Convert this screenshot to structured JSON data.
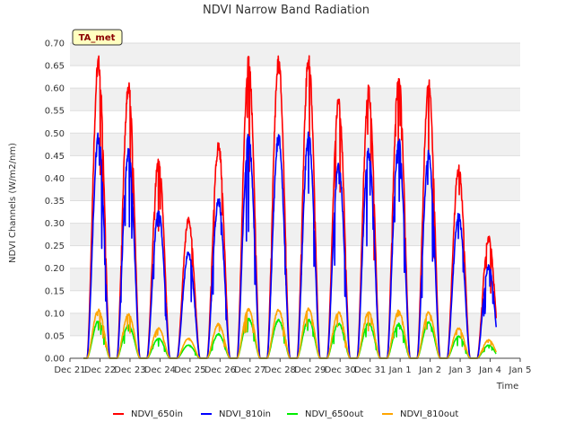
{
  "chart_data": {
    "type": "line",
    "title": "NDVI Narrow Band Radiation",
    "xlabel": "Time",
    "ylabel": "NDVI Channels (W/m2/nm)",
    "ylim": [
      0,
      0.7
    ],
    "yticks": [
      "0.00",
      "0.05",
      "0.10",
      "0.15",
      "0.20",
      "0.25",
      "0.30",
      "0.35",
      "0.40",
      "0.45",
      "0.50",
      "0.55",
      "0.60",
      "0.65",
      "0.70"
    ],
    "xticks": [
      "Dec 21",
      "Dec 22",
      "Dec 23",
      "Dec 24",
      "Dec 25",
      "Dec 26",
      "Dec 27",
      "Dec 28",
      "Dec 29",
      "Dec 30",
      "Dec 31",
      "Jan 1",
      "Jan 2",
      "Jan 3",
      "Jan 4",
      "Jan 5"
    ],
    "xlim_days": [
      0,
      15
    ],
    "annotation": "TA_met",
    "legend_position": "bottom",
    "series": [
      {
        "name": "NDVI_650in",
        "color": "#ff0000",
        "day_peaks": [
          0.675,
          0.62,
          0.45,
          0.315,
          0.485,
          0.678,
          0.675,
          0.685,
          0.587,
          0.61,
          0.64,
          0.625,
          0.432,
          0.275
        ]
      },
      {
        "name": "NDVI_810in",
        "color": "#0000ff",
        "day_peaks": [
          0.505,
          0.47,
          0.335,
          0.24,
          0.36,
          0.505,
          0.503,
          0.51,
          0.44,
          0.47,
          0.495,
          0.465,
          0.325,
          0.21
        ]
      },
      {
        "name": "NDVI_650out",
        "color": "#00ee00",
        "day_peaks": [
          0.085,
          0.075,
          0.045,
          0.03,
          0.055,
          0.09,
          0.087,
          0.088,
          0.08,
          0.08,
          0.078,
          0.082,
          0.05,
          0.03
        ]
      },
      {
        "name": "NDVI_810out",
        "color": "#ffa500",
        "day_peaks": [
          0.11,
          0.1,
          0.068,
          0.045,
          0.078,
          0.112,
          0.11,
          0.113,
          0.105,
          0.105,
          0.108,
          0.105,
          0.068,
          0.042
        ]
      }
    ],
    "day_centers": [
      0.95,
      1.95,
      2.95,
      3.95,
      4.95,
      5.95,
      6.95,
      7.95,
      8.95,
      9.95,
      10.95,
      11.95,
      12.95,
      13.95
    ]
  }
}
